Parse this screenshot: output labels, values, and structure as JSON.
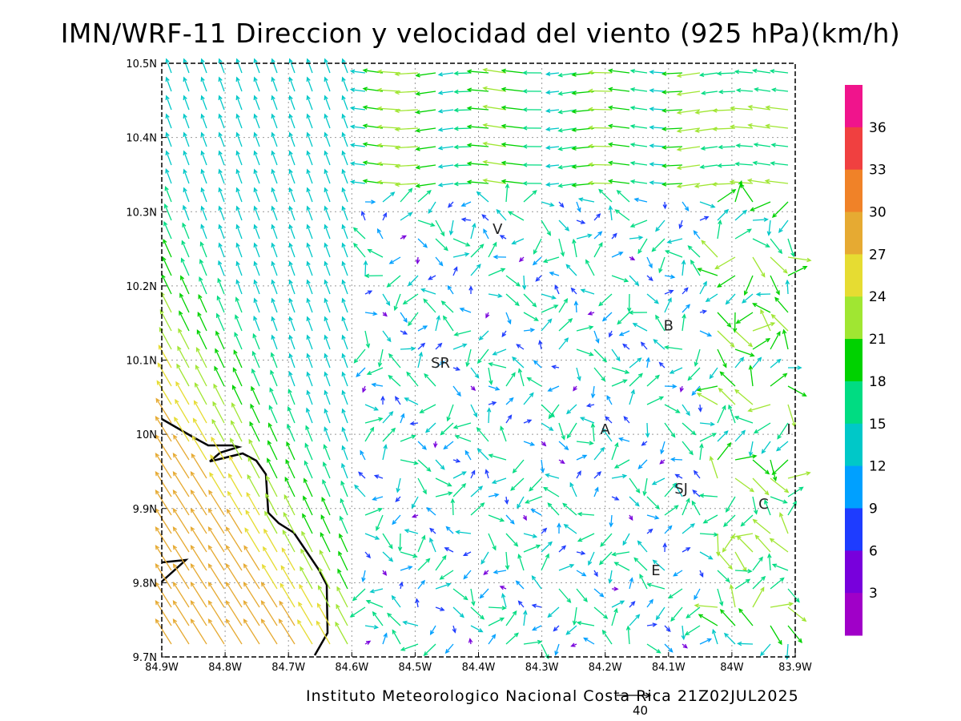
{
  "title": "IMN/WRF-11 Direccion y velocidad del viento (925 hPa)(km/h)",
  "footer": "Instituto Meteorologico Nacional Costa Rica  21Z02JUL2025",
  "reference_vector_label": "40",
  "x_ticks": [
    "84.9W",
    "84.8W",
    "84.7W",
    "84.6W",
    "84.5W",
    "84.4W",
    "84.3W",
    "84.2W",
    "84.1W",
    "84W",
    "83.9W"
  ],
  "y_ticks": [
    "10.5N",
    "10.4N",
    "10.3N",
    "10.2N",
    "10.1N",
    "10N",
    "9.9N",
    "9.8N",
    "9.7N"
  ],
  "places": [
    {
      "name": "V",
      "lon": -84.37,
      "lat": 10.27
    },
    {
      "name": "B",
      "lon": -84.1,
      "lat": 10.14
    },
    {
      "name": "SR",
      "lon": -84.46,
      "lat": 10.09
    },
    {
      "name": "A",
      "lon": -84.2,
      "lat": 10.0
    },
    {
      "name": "SJ",
      "lon": -84.08,
      "lat": 9.92
    },
    {
      "name": "C",
      "lon": -83.95,
      "lat": 9.9
    },
    {
      "name": "E",
      "lon": -84.12,
      "lat": 9.81
    },
    {
      "name": "I",
      "lon": -83.91,
      "lat": 10.0
    }
  ],
  "colorbar": {
    "labels": [
      "36",
      "33",
      "30",
      "27",
      "24",
      "21",
      "18",
      "15",
      "12",
      "9",
      "6",
      "3"
    ],
    "colors": [
      "#f0148c",
      "#f04040",
      "#f08228",
      "#e6aa32",
      "#e6dc32",
      "#a0e632",
      "#00d200",
      "#00dc82",
      "#00c8c8",
      "#00a0ff",
      "#1e3cff",
      "#7800dc",
      "#a000c8"
    ]
  }
}
